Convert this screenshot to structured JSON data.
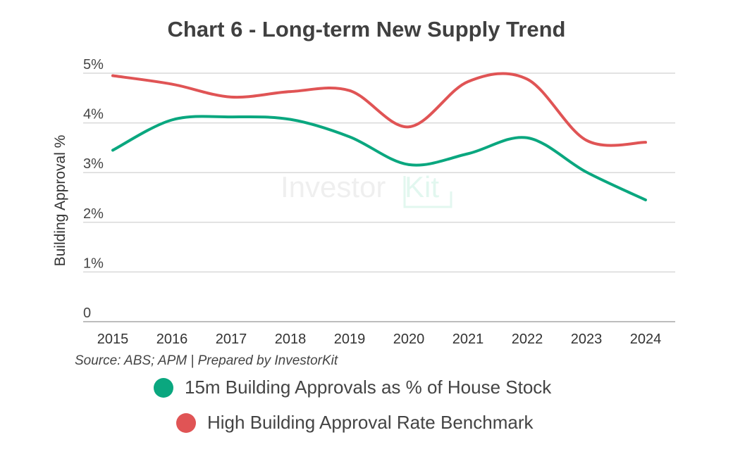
{
  "chart_data": {
    "type": "line",
    "title": "Chart 6 - Long-term New Supply Trend",
    "xlabel": "",
    "ylabel": "Building Approval %",
    "ylim": [
      0,
      5
    ],
    "yticks": [
      0,
      1,
      2,
      3,
      4,
      5
    ],
    "ytick_labels": [
      "0",
      "1%",
      "2%",
      "3%",
      "4%",
      "5%"
    ],
    "grid": true,
    "categories": [
      "2015",
      "2016",
      "2017",
      "2018",
      "2019",
      "2020",
      "2021",
      "2022",
      "2023",
      "2024"
    ],
    "series": [
      {
        "name": "15m Building Approvals as % of House Stock",
        "color": "#0aa77f",
        "values": [
          3.45,
          4.06,
          4.12,
          4.07,
          3.72,
          3.16,
          3.38,
          3.7,
          3.01,
          2.45
        ]
      },
      {
        "name": "High Building Approval Rate Benchmark",
        "color": "#e05455",
        "values": [
          4.95,
          4.78,
          4.52,
          4.63,
          4.65,
          3.92,
          4.83,
          4.88,
          3.65,
          3.61
        ]
      }
    ],
    "source": "Source: ABS; APM | Prepared by InvestorKit",
    "watermark": "InvestorKit",
    "legend_position": "bottom"
  }
}
